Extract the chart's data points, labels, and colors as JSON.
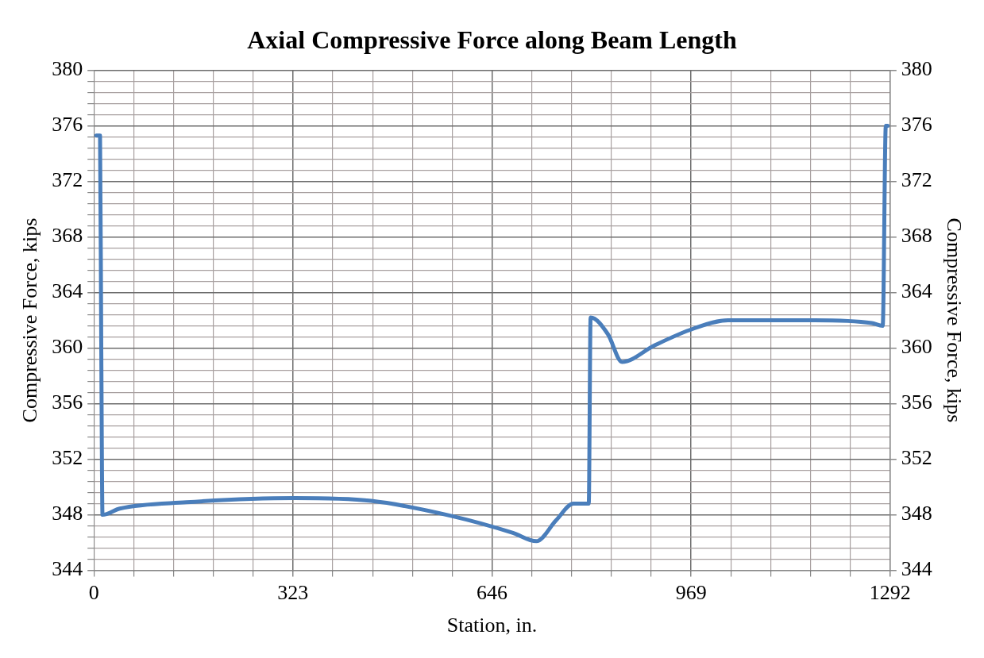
{
  "chart_data": {
    "type": "line",
    "title": "Axial Compressive Force along Beam Length",
    "xlabel": "Station, in.",
    "ylabel": "Compressive Force, kips",
    "y2label": "Compressive Force, kips",
    "xlim": [
      0,
      1292
    ],
    "xticks": [
      0,
      {
        "value": 64.6,
        "label": null
      },
      {
        "value": 129.2,
        "label": null
      },
      {
        "value": 193.8,
        "label": null
      },
      {
        "value": 258.4,
        "label": null
      },
      323,
      {
        "value": 387.6,
        "label": null
      },
      {
        "value": 452.2,
        "label": null
      },
      {
        "value": 516.8,
        "label": null
      },
      {
        "value": 581.4,
        "label": null
      },
      646,
      {
        "value": 710.6,
        "label": null
      },
      {
        "value": 775.2,
        "label": null
      },
      {
        "value": 839.8,
        "label": null
      },
      {
        "value": 904.4,
        "label": null
      },
      969,
      {
        "value": 1033.6,
        "label": null
      },
      {
        "value": 1098.2,
        "label": null
      },
      {
        "value": 1162.8,
        "label": null
      },
      {
        "value": 1227.4,
        "label": null
      },
      1292
    ],
    "ylim": [
      344,
      380
    ],
    "yticks": [
      344,
      {
        "value": 344.8,
        "label": null
      },
      {
        "value": 345.6,
        "label": null
      },
      {
        "value": 346.4,
        "label": null
      },
      {
        "value": 347.2,
        "label": null
      },
      348,
      {
        "value": 348.8,
        "label": null
      },
      {
        "value": 349.6,
        "label": null
      },
      {
        "value": 350.4,
        "label": null
      },
      {
        "value": 351.2,
        "label": null
      },
      352,
      {
        "value": 352.8,
        "label": null
      },
      {
        "value": 353.6,
        "label": null
      },
      {
        "value": 354.4,
        "label": null
      },
      {
        "value": 355.2,
        "label": null
      },
      356,
      {
        "value": 356.8,
        "label": null
      },
      {
        "value": 357.6,
        "label": null
      },
      {
        "value": 358.4,
        "label": null
      },
      {
        "value": 359.2,
        "label": null
      },
      360,
      {
        "value": 360.8,
        "label": null
      },
      {
        "value": 361.6,
        "label": null
      },
      {
        "value": 362.4,
        "label": null
      },
      {
        "value": 363.2,
        "label": null
      },
      364,
      {
        "value": 364.8,
        "label": null
      },
      {
        "value": 365.6,
        "label": null
      },
      {
        "value": 366.4,
        "label": null
      },
      {
        "value": 367.2,
        "label": null
      },
      368,
      {
        "value": 368.8,
        "label": null
      },
      {
        "value": 369.6,
        "label": null
      },
      {
        "value": 370.4,
        "label": null
      },
      {
        "value": 371.2,
        "label": null
      },
      372,
      {
        "value": 372.8,
        "label": null
      },
      {
        "value": 373.6,
        "label": null
      },
      {
        "value": 374.4,
        "label": null
      },
      {
        "value": 375.2,
        "label": null
      },
      376,
      {
        "value": 376.8,
        "label": null
      },
      {
        "value": 377.6,
        "label": null
      },
      {
        "value": 378.4,
        "label": null
      },
      {
        "value": 379.2,
        "label": null
      },
      380
    ],
    "y2lim": [
      344,
      380
    ],
    "y2ticks": [
      344,
      348,
      352,
      356,
      360,
      364,
      368,
      372,
      376,
      380
    ],
    "grid": true,
    "legend": false,
    "marker": "none",
    "line_style": "solid",
    "series": [
      {
        "color": "#4a7ebb",
        "x": [
          4,
          10,
          12,
          14,
          42,
          150,
          325,
          450,
          582,
          680,
          718,
          750,
          778,
          803,
          806,
          834,
          857,
          910,
          973,
          1029,
          1169,
          1262,
          1280,
          1285,
          1288
        ],
        "values": [
          375.3,
          375.3,
          360,
          348.0,
          348.45,
          348.9,
          349.2,
          349.0,
          347.9,
          346.7,
          346.1,
          347.6,
          348.8,
          348.8,
          362.2,
          361.0,
          359.0,
          360.2,
          361.4,
          362.0,
          362.0,
          361.8,
          361.6,
          376.0,
          376.0
        ]
      }
    ]
  }
}
